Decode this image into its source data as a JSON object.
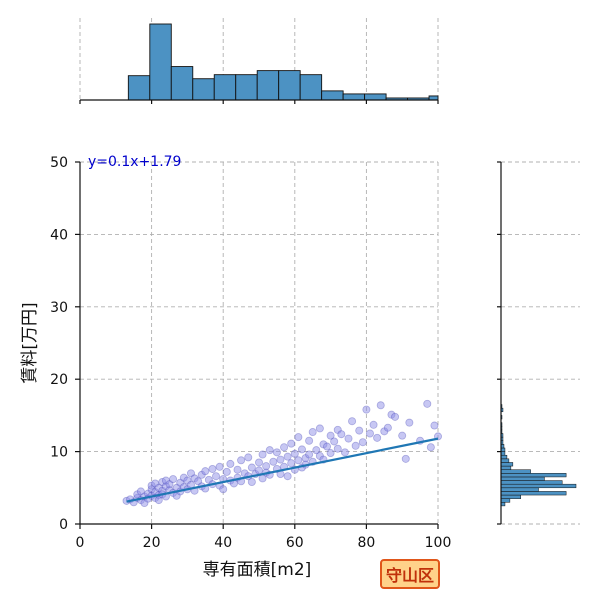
{
  "chart_data": {
    "type": "scatter",
    "title": "",
    "xlabel": "専有面積[m2]",
    "ylabel": "賃料[万円]",
    "xlim": [
      0,
      100
    ],
    "ylim": [
      0,
      50
    ],
    "xticks": [
      0,
      20,
      40,
      60,
      80,
      100
    ],
    "yticks": [
      0,
      10,
      20,
      30,
      40,
      50
    ],
    "grid": true,
    "regression": {
      "label": "y=0.1x+1.79",
      "slope": 0.1,
      "intercept": 1.79,
      "x_range": [
        13,
        100
      ]
    },
    "top_histogram": {
      "variable": "専有面積[m2]",
      "bin_edges": [
        13.5,
        19.5,
        25.5,
        31.5,
        37.5,
        43.5,
        49.5,
        55.5,
        61.5,
        67.5,
        73.5,
        79.5,
        85.5,
        91.5,
        97.5,
        100
      ],
      "counts": [
        24,
        75,
        33,
        21,
        25,
        25,
        29,
        29,
        25,
        9,
        6,
        6,
        2,
        2,
        4
      ]
    },
    "right_histogram": {
      "variable": "賃料[万円]",
      "bin_edges": [
        2.5,
        3.0,
        3.5,
        4.0,
        4.5,
        5.0,
        5.5,
        6.0,
        6.5,
        7.0,
        7.5,
        8.0,
        8.5,
        9.0,
        9.5,
        10.0,
        10.5,
        11.0,
        11.5,
        12.0,
        12.5,
        13.0,
        13.5,
        14.0,
        14.5,
        15.0,
        15.5,
        16.0,
        16.5
      ],
      "counts": [
        4,
        9,
        20,
        66,
        38,
        76,
        62,
        44,
        66,
        30,
        10,
        12,
        8,
        6,
        4,
        4,
        3,
        2,
        2,
        2,
        1,
        1,
        1,
        0,
        1,
        0,
        2,
        1
      ]
    },
    "points_note": "scatter of listings: rent (万円) vs floor area (m2)",
    "points": [
      [
        13,
        3.2
      ],
      [
        14,
        3.4
      ],
      [
        15,
        3.0
      ],
      [
        16,
        3.6
      ],
      [
        16,
        4.1
      ],
      [
        17,
        3.3
      ],
      [
        17,
        4.5
      ],
      [
        18,
        3.8
      ],
      [
        18,
        2.9
      ],
      [
        19,
        4.2
      ],
      [
        19,
        3.5
      ],
      [
        20,
        4.8
      ],
      [
        20,
        3.9
      ],
      [
        20,
        5.3
      ],
      [
        21,
        4.4
      ],
      [
        21,
        3.6
      ],
      [
        21,
        5.6
      ],
      [
        22,
        4.0
      ],
      [
        22,
        5.0
      ],
      [
        22,
        3.3
      ],
      [
        23,
        4.6
      ],
      [
        23,
        5.8
      ],
      [
        23,
        4.1
      ],
      [
        24,
        5.2
      ],
      [
        24,
        3.8
      ],
      [
        24,
        6.0
      ],
      [
        25,
        4.7
      ],
      [
        25,
        5.5
      ],
      [
        26,
        4.3
      ],
      [
        26,
        6.2
      ],
      [
        27,
        5.0
      ],
      [
        27,
        3.9
      ],
      [
        28,
        5.7
      ],
      [
        28,
        4.5
      ],
      [
        29,
        6.4
      ],
      [
        29,
        5.1
      ],
      [
        30,
        4.8
      ],
      [
        30,
        6.0
      ],
      [
        31,
        5.4
      ],
      [
        31,
        7.0
      ],
      [
        32,
        4.6
      ],
      [
        32,
        6.3
      ],
      [
        33,
        5.9
      ],
      [
        34,
        5.2
      ],
      [
        34,
        6.8
      ],
      [
        35,
        4.9
      ],
      [
        35,
        7.3
      ],
      [
        36,
        6.1
      ],
      [
        37,
        5.5
      ],
      [
        37,
        7.6
      ],
      [
        38,
        6.6
      ],
      [
        39,
        5.3
      ],
      [
        39,
        7.9
      ],
      [
        40,
        6.2
      ],
      [
        40,
        4.8
      ],
      [
        41,
        7.2
      ],
      [
        42,
        6.0
      ],
      [
        42,
        8.3
      ],
      [
        43,
        5.6
      ],
      [
        44,
        7.5
      ],
      [
        44,
        6.4
      ],
      [
        45,
        8.8
      ],
      [
        45,
        5.9
      ],
      [
        46,
        7.0
      ],
      [
        47,
        6.6
      ],
      [
        47,
        9.2
      ],
      [
        48,
        7.8
      ],
      [
        48,
        5.8
      ],
      [
        49,
        6.9
      ],
      [
        50,
        8.5
      ],
      [
        50,
        7.4
      ],
      [
        51,
        6.3
      ],
      [
        51,
        9.6
      ],
      [
        52,
        8.0
      ],
      [
        52,
        7.1
      ],
      [
        53,
        10.2
      ],
      [
        53,
        6.8
      ],
      [
        54,
        8.6
      ],
      [
        55,
        7.6
      ],
      [
        55,
        9.9
      ],
      [
        56,
        6.9
      ],
      [
        56,
        8.9
      ],
      [
        57,
        10.6
      ],
      [
        57,
        7.9
      ],
      [
        58,
        9.3
      ],
      [
        58,
        6.6
      ],
      [
        59,
        8.4
      ],
      [
        59,
        11.1
      ],
      [
        60,
        7.5
      ],
      [
        60,
        9.7
      ],
      [
        61,
        8.8
      ],
      [
        61,
        12.0
      ],
      [
        62,
        7.8
      ],
      [
        62,
        10.3
      ],
      [
        63,
        9.1
      ],
      [
        63,
        8.2
      ],
      [
        64,
        11.5
      ],
      [
        64,
        9.6
      ],
      [
        65,
        8.6
      ],
      [
        65,
        12.7
      ],
      [
        66,
        10.2
      ],
      [
        67,
        9.4
      ],
      [
        67,
        13.2
      ],
      [
        68,
        11.0
      ],
      [
        68,
        8.9
      ],
      [
        69,
        10.7
      ],
      [
        70,
        12.2
      ],
      [
        70,
        9.8
      ],
      [
        71,
        11.4
      ],
      [
        72,
        13.0
      ],
      [
        72,
        10.4
      ],
      [
        73,
        12.4
      ],
      [
        74,
        9.9
      ],
      [
        75,
        11.8
      ],
      [
        76,
        14.2
      ],
      [
        77,
        10.8
      ],
      [
        78,
        12.9
      ],
      [
        79,
        11.3
      ],
      [
        80,
        15.8
      ],
      [
        81,
        12.5
      ],
      [
        82,
        13.7
      ],
      [
        83,
        11.9
      ],
      [
        84,
        16.4
      ],
      [
        85,
        12.8
      ],
      [
        86,
        13.3
      ],
      [
        87,
        15.1
      ],
      [
        88,
        14.8
      ],
      [
        90,
        12.2
      ],
      [
        91,
        9.0
      ],
      [
        92,
        14.0
      ],
      [
        95,
        11.5
      ],
      [
        97,
        16.6
      ],
      [
        98,
        10.6
      ],
      [
        99,
        13.6
      ],
      [
        100,
        12.1
      ]
    ]
  },
  "badge": {
    "label": "守山区"
  },
  "colors": {
    "bar": "#4c92c3",
    "point_fill": "#8f8fe8",
    "point_edge": "#3a3ab0",
    "line": "#1f77b4"
  }
}
